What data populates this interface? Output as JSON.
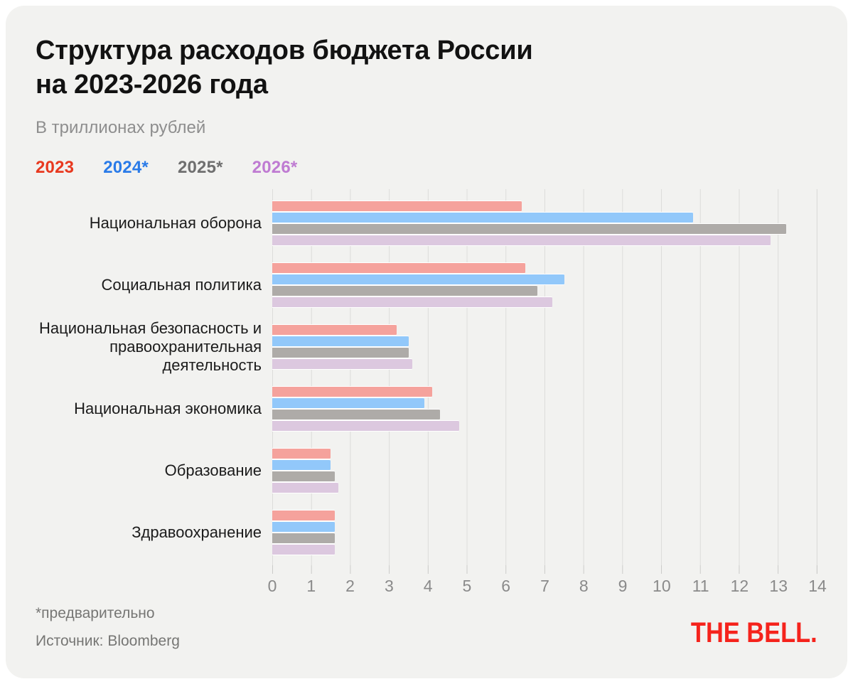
{
  "card": {
    "title_line1": "Структура расходов бюджета России",
    "title_line2": "на 2023-2026 года",
    "subtitle": "В триллионах рублей",
    "footnote": "*предварительно",
    "source": "Источник: Bloomberg",
    "logo": "THE BELL.",
    "background": "#F2F2F0",
    "logo_color": "#F5231C"
  },
  "legend": [
    {
      "label": "2023",
      "text_color": "#E8391F"
    },
    {
      "label": "2024*",
      "text_color": "#2A7BE8"
    },
    {
      "label": "2025*",
      "text_color": "#6F6F6F"
    },
    {
      "label": "2026*",
      "text_color": "#BF7BD2"
    }
  ],
  "chart_data": {
    "type": "bar",
    "orientation": "horizontal",
    "title": "Структура расходов бюджета России на 2023-2026 года",
    "subtitle": "В триллионах рублей",
    "unit": "триллионы рублей",
    "categories": [
      "Национальная оборона",
      "Социальная политика",
      "Национальная безопасность и правоохранительная деятельность",
      "Национальная экономика",
      "Образование",
      "Здравоохранение"
    ],
    "series": [
      {
        "name": "2023",
        "color": "#F5A29C",
        "values": [
          6.4,
          6.5,
          3.2,
          4.1,
          1.5,
          1.6
        ]
      },
      {
        "name": "2024*",
        "color": "#92C8FA",
        "values": [
          10.8,
          7.5,
          3.5,
          3.9,
          1.5,
          1.6
        ]
      },
      {
        "name": "2025*",
        "color": "#AEABA8",
        "values": [
          13.2,
          6.8,
          3.5,
          4.3,
          1.6,
          1.6
        ]
      },
      {
        "name": "2026*",
        "color": "#DCC8DF",
        "values": [
          12.8,
          7.2,
          3.6,
          4.8,
          1.7,
          1.6
        ]
      }
    ],
    "xlim": [
      0,
      14
    ],
    "x_ticks": [
      0,
      1,
      2,
      3,
      4,
      5,
      6,
      7,
      8,
      9,
      10,
      11,
      12,
      13,
      14
    ],
    "grid": true,
    "legend_position": "top",
    "source": "Bloomberg"
  }
}
